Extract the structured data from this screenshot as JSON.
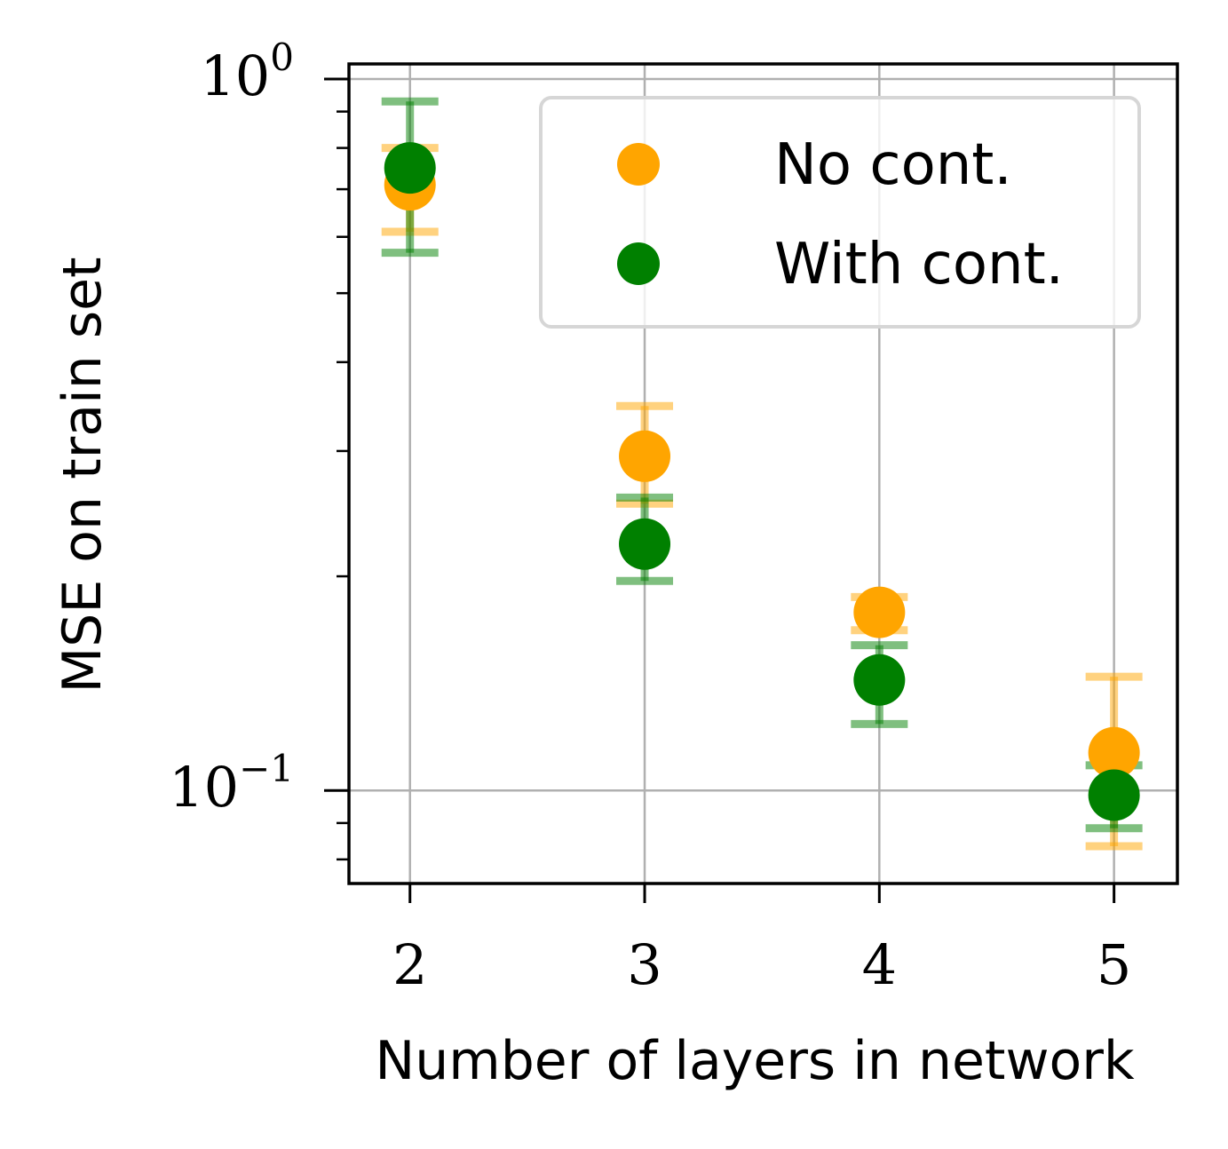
{
  "chart_data": {
    "type": "scatter",
    "title": "",
    "xlabel": "Number of layers in network",
    "ylabel": "MSE on train set",
    "y_scale": "log",
    "xlim": [
      1.74,
      5.27
    ],
    "ylim": [
      0.074,
      1.05
    ],
    "x_ticks": [
      {
        "value": 2,
        "label": "2"
      },
      {
        "value": 3,
        "label": "3"
      },
      {
        "value": 4,
        "label": "4"
      },
      {
        "value": 5,
        "label": "5"
      }
    ],
    "y_ticks": [
      {
        "value": 1.0,
        "base": "10",
        "exp": "0"
      },
      {
        "value": 0.1,
        "base": "10",
        "exp": "−1"
      }
    ],
    "grid": true,
    "legend_position": "top-right",
    "series": [
      {
        "name": "No cont.",
        "color": "#FFA500",
        "x": [
          2,
          3,
          4,
          5
        ],
        "y": [
          0.71,
          0.295,
          0.178,
          0.113
        ],
        "err_low": [
          0.61,
          0.253,
          0.168,
          0.0835
        ],
        "err_high": [
          0.8,
          0.347,
          0.187,
          0.1445
        ]
      },
      {
        "name": "With cont.",
        "color": "#008000",
        "x": [
          2,
          3,
          4,
          5
        ],
        "y": [
          0.75,
          0.222,
          0.143,
          0.0985
        ],
        "err_low": [
          0.57,
          0.197,
          0.124,
          0.0885
        ],
        "err_high": [
          0.93,
          0.258,
          0.16,
          0.1085
        ]
      }
    ]
  }
}
